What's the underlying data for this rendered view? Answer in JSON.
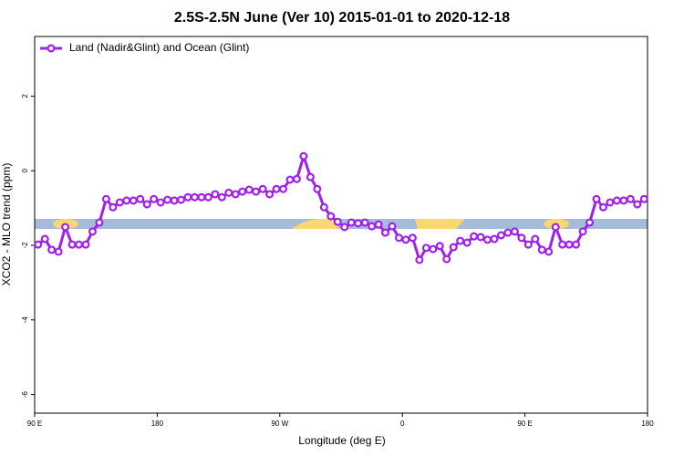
{
  "chart_data": {
    "type": "line",
    "title": "2.5S-2.5N June (Ver 10)   2015-01-01 to 2020-12-18",
    "xlabel": "Longitude (deg E)",
    "ylabel": "XCO2 - MLO trend (ppm)",
    "x": [
      92.5,
      97.5,
      102.5,
      107.5,
      112.5,
      117.5,
      122.5,
      127.5,
      132.5,
      137.5,
      142.5,
      147.5,
      152.5,
      157.5,
      162.5,
      167.5,
      172.5,
      177.5,
      182.5,
      187.5,
      192.5,
      197.5,
      202.5,
      207.5,
      212.5,
      217.5,
      222.5,
      227.5,
      232.5,
      237.5,
      242.5,
      247.5,
      252.5,
      257.5,
      262.5,
      267.5,
      272.5,
      277.5,
      282.5,
      287.5,
      292.5,
      297.5,
      302.5,
      307.5,
      312.5,
      317.5,
      322.5,
      327.5,
      332.5,
      337.5,
      342.5,
      347.5,
      352.5,
      357.5,
      362.5,
      367.5,
      372.5,
      377.5,
      382.5,
      387.5,
      392.5,
      397.5,
      402.5,
      407.5,
      412.5,
      417.5,
      422.5,
      427.5,
      432.5,
      437.5,
      442.5,
      447.5,
      452.5,
      457.5,
      462.5,
      467.5,
      472.5,
      477.5,
      482.5,
      487.5,
      492.5,
      497.5,
      502.5,
      507.5,
      512.5,
      517.5,
      522.5,
      527.5,
      532.5,
      537.5
    ],
    "series": [
      {
        "name": "Land (Nadir&Glint) and Ocean (Glint)",
        "color": "#a020f0",
        "values": [
          -1.98,
          -1.83,
          -2.12,
          -2.17,
          -1.51,
          -1.98,
          -1.98,
          -1.98,
          -1.63,
          -1.39,
          -0.76,
          -0.98,
          -0.85,
          -0.8,
          -0.8,
          -0.76,
          -0.9,
          -0.76,
          -0.85,
          -0.78,
          -0.8,
          -0.78,
          -0.71,
          -0.71,
          -0.71,
          -0.71,
          -0.63,
          -0.71,
          -0.59,
          -0.63,
          -0.56,
          -0.51,
          -0.56,
          -0.49,
          -0.63,
          -0.49,
          -0.49,
          -0.24,
          -0.22,
          0.39,
          -0.17,
          -0.49,
          -0.98,
          -1.22,
          -1.37,
          -1.51,
          -1.39,
          -1.41,
          -1.39,
          -1.49,
          -1.44,
          -1.66,
          -1.49,
          -1.8,
          -1.85,
          -1.8,
          -2.39,
          -2.07,
          -2.1,
          -2.02,
          -2.37,
          -2.05,
          -1.88,
          -1.93,
          -1.76,
          -1.78,
          -1.85,
          -1.83,
          -1.73,
          -1.66,
          -1.63,
          -1.8,
          -1.98,
          -1.83,
          -2.12,
          -2.17,
          -1.51,
          -1.98,
          -1.98,
          -1.98,
          -1.63,
          -1.39,
          -0.76,
          -0.98,
          -0.85,
          -0.8,
          -0.8,
          -0.76,
          -0.9,
          -0.76
        ]
      }
    ],
    "xlim": [
      90,
      540
    ],
    "xticks": [
      {
        "value": 90,
        "label": "90 E"
      },
      180,
      {
        "value": 270,
        "label": "90 W"
      },
      {
        "value": 360,
        "label": "0"
      },
      {
        "value": 450,
        "label": "90 E"
      },
      {
        "value": 540,
        "label": "180"
      }
    ],
    "ylim": [
      -6.5,
      3.6
    ],
    "yticks": [
      -6,
      -4,
      -2,
      0,
      2
    ],
    "legend": "top-left"
  }
}
